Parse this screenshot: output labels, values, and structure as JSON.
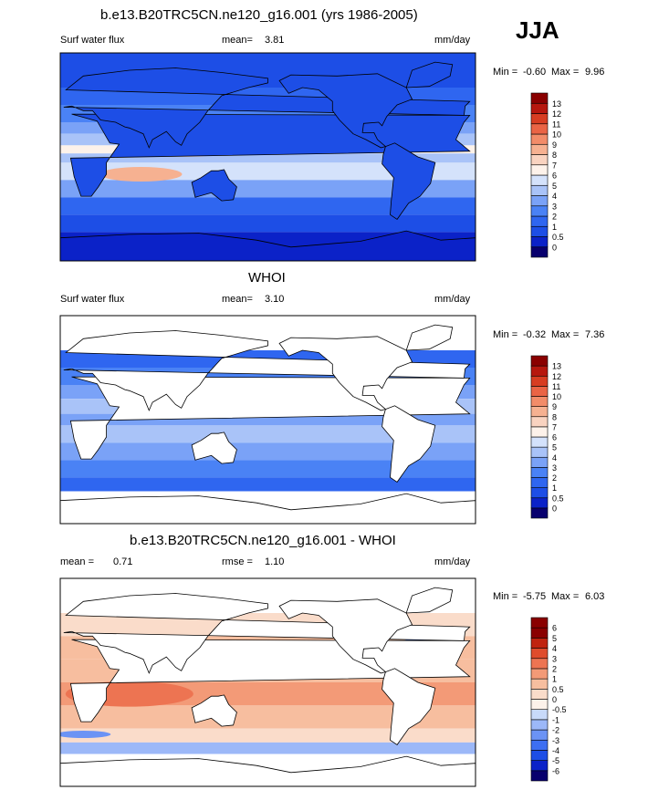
{
  "season": "JJA",
  "colors": {
    "ocean": "#ffffff",
    "land": "#ffffff",
    "seq_levels": [
      "#08006e",
      "#0b22c8",
      "#1d4ee6",
      "#2f66f0",
      "#4a82f5",
      "#7aa2f7",
      "#a9c3f8",
      "#d4e2fb",
      "#fdf2ea",
      "#f9d3c0",
      "#f6b191",
      "#f28c69",
      "#ea6445",
      "#d73d22",
      "#b6170e",
      "#8a0000"
    ],
    "diff_levels": [
      "#08006e",
      "#0b22c8",
      "#1d4ee6",
      "#3d6ff2",
      "#6b93f5",
      "#9cb8f8",
      "#c8daf9",
      "#fdf2ea",
      "#fadcca",
      "#f7be9f",
      "#f39a77",
      "#ed7452",
      "#df4c2c",
      "#c0230f",
      "#8a0000"
    ]
  },
  "panels": [
    {
      "title": "b.e13.B20TRC5CN.ne120_g16.001 (yrs 1986-2005)",
      "left_label": "Surf water flux",
      "mean_label": "mean=",
      "mean_value": "3.81",
      "units": "mm/day",
      "min_label": "Min =",
      "min_value": "-0.60",
      "max_label": "Max =",
      "max_value": "9.96"
    },
    {
      "title": "WHOI",
      "left_label": "Surf water flux",
      "mean_label": "mean=",
      "mean_value": "3.10",
      "units": "mm/day",
      "min_label": "Min =",
      "min_value": "-0.32",
      "max_label": "Max =",
      "max_value": "7.36"
    },
    {
      "title": "b.e13.B20TRC5CN.ne120_g16.001 - WHOI",
      "mean_label": "mean =",
      "mean_value": "0.71",
      "rmse_label": "rmse =",
      "rmse_value": "1.10",
      "units": "mm/day",
      "min_label": "Min =",
      "min_value": "-5.75",
      "max_label": "Max =",
      "max_value": "6.03"
    }
  ],
  "chart_data": [
    {
      "type": "heatmap",
      "title": "b.e13.B20TRC5CN.ne120_g16.001 (yrs 1986-2005)",
      "variable": "Surf water flux",
      "units": "mm/day",
      "mean": 3.81,
      "min": -0.6,
      "max": 9.96,
      "colorbar_levels": [
        "0",
        "0.5",
        "1",
        "2",
        "3",
        "4",
        "5",
        "6",
        "7",
        "8",
        "9",
        "10",
        "11",
        "12",
        "13"
      ]
    },
    {
      "type": "heatmap",
      "title": "WHOI",
      "variable": "Surf water flux",
      "units": "mm/day",
      "mean": 3.1,
      "min": -0.32,
      "max": 7.36,
      "colorbar_levels": [
        "0",
        "0.5",
        "1",
        "2",
        "3",
        "4",
        "5",
        "6",
        "7",
        "8",
        "9",
        "10",
        "11",
        "12",
        "13"
      ]
    },
    {
      "type": "heatmap",
      "title": "b.e13.B20TRC5CN.ne120_g16.001 - WHOI",
      "units": "mm/day",
      "mean": 0.71,
      "rmse": 1.1,
      "min": -5.75,
      "max": 6.03,
      "colorbar_levels": [
        "-6",
        "-5",
        "-4",
        "-3",
        "-2",
        "-1",
        "-0.5",
        "0",
        "0.5",
        "1",
        "2",
        "3",
        "4",
        "5",
        "6"
      ]
    }
  ]
}
